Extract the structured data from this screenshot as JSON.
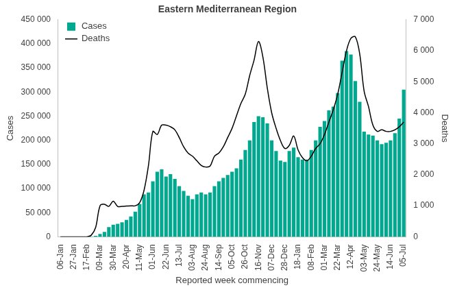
{
  "chart_data": {
    "type": "bar",
    "title": "Eastern Mediterranean Region",
    "x_label": "Reported week commencing",
    "y_label": "Cases",
    "y2_label": "Deaths",
    "legend": "upper left",
    "grid": false,
    "categories": [
      "06-Jan",
      null,
      null,
      "27-Jan",
      null,
      null,
      "17-Feb",
      null,
      null,
      "09-Mar",
      null,
      null,
      "30-Mar",
      null,
      null,
      "20-Apr",
      null,
      null,
      "11-May",
      null,
      null,
      "01-Jun",
      null,
      null,
      "22-Jun",
      null,
      null,
      "13-Jul",
      null,
      null,
      "03-Aug",
      null,
      null,
      "24-Aug",
      null,
      null,
      "14-Sep",
      null,
      null,
      "05-Oct",
      null,
      null,
      "26-Oct",
      null,
      null,
      "16-Nov",
      null,
      null,
      "07-Dec",
      null,
      null,
      "28-Dec",
      null,
      null,
      "18-Jan",
      null,
      null,
      "08-Feb",
      null,
      null,
      "01-Mar",
      null,
      null,
      "22-Mar",
      null,
      null,
      "12-Apr",
      null,
      null,
      "03-May",
      null,
      null,
      "24-May",
      null,
      null,
      "14-Jun",
      null,
      null,
      "05-Jul"
    ],
    "series": [
      {
        "name": "Cases",
        "type": "bar",
        "color": "#00A88F",
        "values": [
          0,
          0,
          0,
          0,
          0,
          0,
          0,
          500,
          2000,
          6000,
          10000,
          20000,
          25000,
          27000,
          30000,
          35000,
          42000,
          52000,
          68000,
          88000,
          92000,
          115000,
          135000,
          140000,
          125000,
          130000,
          120000,
          105000,
          95000,
          85000,
          78000,
          88000,
          92000,
          88000,
          92000,
          105000,
          115000,
          122000,
          128000,
          135000,
          142000,
          160000,
          180000,
          200000,
          238000,
          250000,
          248000,
          235000,
          200000,
          178000,
          158000,
          155000,
          178000,
          185000,
          165000,
          160000,
          160000,
          180000,
          200000,
          228000,
          240000,
          262000,
          270000,
          298000,
          365000,
          385000,
          378000,
          323000,
          280000,
          218000,
          212000,
          210000,
          200000,
          192000,
          195000,
          200000,
          215000,
          245000,
          305000
        ]
      },
      {
        "name": "Deaths",
        "type": "line",
        "color": "#000000",
        "axis": "y2",
        "values": [
          0,
          0,
          0,
          0,
          0,
          0,
          0,
          50,
          300,
          1000,
          1050,
          980,
          1150,
          980,
          980,
          990,
          1000,
          1000,
          1100,
          1500,
          2300,
          3400,
          3300,
          3600,
          3600,
          3550,
          3450,
          3200,
          2900,
          2700,
          2600,
          2450,
          2300,
          2250,
          2280,
          2600,
          2700,
          2900,
          3200,
          3500,
          3900,
          4300,
          4600,
          5200,
          5700,
          6300,
          5800,
          4800,
          4000,
          3500,
          3100,
          2850,
          2950,
          3250,
          2800,
          2550,
          2450,
          2600,
          2850,
          3000,
          3300,
          3700,
          4100,
          4600,
          5300,
          6000,
          6400,
          6450,
          5900,
          4700,
          4200,
          3600,
          3400,
          3450,
          3400,
          3400,
          3450,
          3550,
          3700
        ]
      }
    ],
    "ylim": [
      0,
      450000
    ],
    "yticks": [
      0,
      {
        "value": 50000,
        "label": "50 000"
      },
      {
        "value": 100000,
        "label": "100 000"
      },
      {
        "value": 150000,
        "label": "150 000"
      },
      {
        "value": 200000,
        "label": "200 000"
      },
      {
        "value": 250000,
        "label": "250 000"
      },
      {
        "value": 300000,
        "label": "300 000"
      },
      {
        "value": 350000,
        "label": "350 000"
      },
      {
        "value": 400000,
        "label": "400 000"
      },
      {
        "value": 450000,
        "label": "450 000"
      }
    ],
    "y2lim": [
      0,
      7000
    ],
    "y2ticks": [
      0,
      {
        "value": 1000,
        "label": "1 000"
      },
      {
        "value": 2000,
        "label": "2 000"
      },
      {
        "value": 3000,
        "label": "3 000"
      },
      {
        "value": 4000,
        "label": "4 000"
      },
      {
        "value": 5000,
        "label": "5 000"
      },
      {
        "value": 6000,
        "label": "6 000"
      },
      {
        "value": 7000,
        "label": "7 000"
      }
    ]
  }
}
